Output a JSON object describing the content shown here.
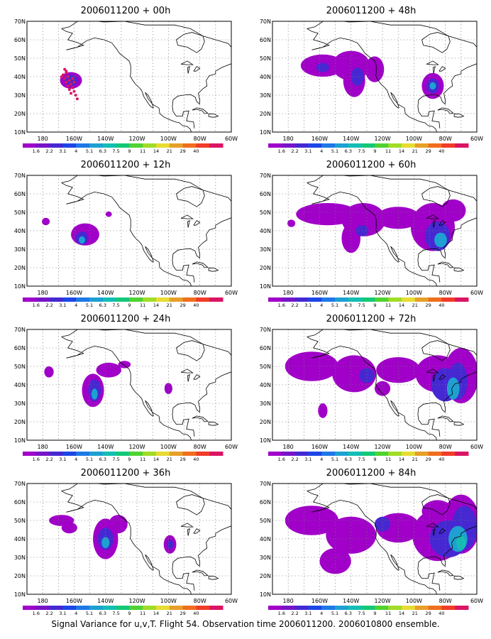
{
  "caption": "Signal Variance for u,v,T. Flight 54. Observation time 2006011200. 2006010800 ensemble.",
  "lat_labels": [
    "10N",
    "20N",
    "30N",
    "40N",
    "50N",
    "60N",
    "70N"
  ],
  "lon_labels": [
    "180",
    "160W",
    "140W",
    "120W",
    "100W",
    "80W",
    "60W"
  ],
  "colorbar": {
    "labels": [
      "1.6",
      "2.2",
      "3.1",
      "4",
      "5.1",
      "6.3",
      "7.5",
      "9",
      "11",
      "14",
      "21",
      "29",
      "40"
    ],
    "colors": [
      "#a000c8",
      "#7814c8",
      "#4628d2",
      "#1e46e6",
      "#1e78e6",
      "#1ea0d2",
      "#14beb4",
      "#14c878",
      "#50d232",
      "#a0dc28",
      "#e6dc32",
      "#e6a028",
      "#f06e1e",
      "#f03c28",
      "#dc1464"
    ]
  },
  "panels": [
    {
      "title": "2006011200 + 00h",
      "col": 0,
      "row": 0,
      "blobs": [
        {
          "lon": -162,
          "lat": 38,
          "rx": 7,
          "ry": 4.5,
          "level": 1
        },
        {
          "lon": -162,
          "lat": 38,
          "rx": 4,
          "ry": 3,
          "level": 2
        }
      ],
      "dots": [
        [
          -166,
          44
        ],
        [
          -165,
          42
        ],
        [
          -164,
          40
        ],
        [
          -163,
          38
        ],
        [
          -162,
          36
        ],
        [
          -161,
          34
        ],
        [
          -160,
          32
        ],
        [
          -159,
          30
        ],
        [
          -158,
          28
        ],
        [
          -167,
          41
        ],
        [
          -166,
          39
        ],
        [
          -165,
          37
        ],
        [
          -164,
          35
        ],
        [
          -163,
          33
        ],
        [
          -162,
          31
        ],
        [
          -168,
          40
        ],
        [
          -165,
          43
        ],
        [
          -161,
          39
        ],
        [
          -160,
          37
        ]
      ]
    },
    {
      "title": "2006011200 + 48h",
      "col": 1,
      "row": 0,
      "blobs": [
        {
          "lon": -158,
          "lat": 46,
          "rx": 14,
          "ry": 6,
          "level": 1
        },
        {
          "lon": -140,
          "lat": 46,
          "rx": 12,
          "ry": 8,
          "level": 1
        },
        {
          "lon": -138,
          "lat": 38,
          "rx": 7,
          "ry": 9,
          "level": 1
        },
        {
          "lon": -125,
          "lat": 44,
          "rx": 6,
          "ry": 7,
          "level": 1
        },
        {
          "lon": -136,
          "lat": 40,
          "rx": 4,
          "ry": 5,
          "level": 2
        },
        {
          "lon": -158,
          "lat": 45,
          "rx": 4,
          "ry": 2.5,
          "level": 2
        },
        {
          "lon": -88,
          "lat": 35,
          "rx": 7,
          "ry": 7,
          "level": 1
        },
        {
          "lon": -88,
          "lat": 35,
          "rx": 4,
          "ry": 4,
          "level": 2
        },
        {
          "lon": -88,
          "lat": 35,
          "rx": 2,
          "ry": 2,
          "level": 3
        }
      ],
      "dots": []
    },
    {
      "title": "2006011200 + 12h",
      "col": 0,
      "row": 1,
      "blobs": [
        {
          "lon": -178,
          "lat": 45,
          "rx": 2.5,
          "ry": 2,
          "level": 1
        },
        {
          "lon": -153,
          "lat": 38,
          "rx": 9,
          "ry": 6,
          "level": 1
        },
        {
          "lon": -155,
          "lat": 36,
          "rx": 4,
          "ry": 3.5,
          "level": 2
        },
        {
          "lon": -155,
          "lat": 35,
          "rx": 2,
          "ry": 2,
          "level": 3
        },
        {
          "lon": -138,
          "lat": 49,
          "rx": 2,
          "ry": 1.5,
          "level": 1
        }
      ],
      "dots": []
    },
    {
      "title": "2006011200 + 60h",
      "col": 1,
      "row": 1,
      "blobs": [
        {
          "lon": -178,
          "lat": 44,
          "rx": 2.5,
          "ry": 2,
          "level": 1
        },
        {
          "lon": -155,
          "lat": 49,
          "rx": 20,
          "ry": 6,
          "level": 1
        },
        {
          "lon": -132,
          "lat": 46,
          "rx": 14,
          "ry": 9,
          "level": 1
        },
        {
          "lon": -140,
          "lat": 36,
          "rx": 6,
          "ry": 8,
          "level": 1
        },
        {
          "lon": -110,
          "lat": 47,
          "rx": 14,
          "ry": 6,
          "level": 1
        },
        {
          "lon": -88,
          "lat": 42,
          "rx": 14,
          "ry": 13,
          "level": 1
        },
        {
          "lon": -75,
          "lat": 51,
          "rx": 8,
          "ry": 6,
          "level": 1
        },
        {
          "lon": -85,
          "lat": 37,
          "rx": 8,
          "ry": 8,
          "level": 2
        },
        {
          "lon": -83,
          "lat": 35,
          "rx": 4,
          "ry": 4,
          "level": 3
        },
        {
          "lon": -133,
          "lat": 40,
          "rx": 4,
          "ry": 3,
          "level": 2
        }
      ],
      "dots": []
    },
    {
      "title": "2006011200 + 24h",
      "col": 0,
      "row": 2,
      "blobs": [
        {
          "lon": -176,
          "lat": 47,
          "rx": 3,
          "ry": 3,
          "level": 1
        },
        {
          "lon": -148,
          "lat": 37,
          "rx": 7,
          "ry": 9,
          "level": 1
        },
        {
          "lon": -138,
          "lat": 48,
          "rx": 8,
          "ry": 4,
          "level": 1
        },
        {
          "lon": -128,
          "lat": 51,
          "rx": 4,
          "ry": 2,
          "level": 1
        },
        {
          "lon": -147,
          "lat": 37,
          "rx": 4,
          "ry": 6,
          "level": 2
        },
        {
          "lon": -147,
          "lat": 35,
          "rx": 2,
          "ry": 3,
          "level": 3
        },
        {
          "lon": -100,
          "lat": 38,
          "rx": 2.5,
          "ry": 3,
          "level": 1
        }
      ],
      "dots": []
    },
    {
      "title": "2006011200 + 72h",
      "col": 1,
      "row": 2,
      "blobs": [
        {
          "lon": -165,
          "lat": 50,
          "rx": 17,
          "ry": 8,
          "level": 1
        },
        {
          "lon": -138,
          "lat": 46,
          "rx": 14,
          "ry": 10,
          "level": 1
        },
        {
          "lon": -110,
          "lat": 48,
          "rx": 14,
          "ry": 7,
          "level": 1
        },
        {
          "lon": -85,
          "lat": 46,
          "rx": 14,
          "ry": 10,
          "level": 1
        },
        {
          "lon": -70,
          "lat": 45,
          "rx": 11,
          "ry": 15,
          "level": 1
        },
        {
          "lon": -158,
          "lat": 26,
          "rx": 3,
          "ry": 4,
          "level": 1
        },
        {
          "lon": -120,
          "lat": 38,
          "rx": 5,
          "ry": 4,
          "level": 1
        },
        {
          "lon": -80,
          "lat": 40,
          "rx": 9,
          "ry": 9,
          "level": 2
        },
        {
          "lon": -72,
          "lat": 42,
          "rx": 6,
          "ry": 10,
          "level": 2
        },
        {
          "lon": -75,
          "lat": 38,
          "rx": 4,
          "ry": 6,
          "level": 3
        },
        {
          "lon": -130,
          "lat": 45,
          "rx": 5,
          "ry": 4,
          "level": 2
        }
      ],
      "dots": []
    },
    {
      "title": "2006011200 + 36h",
      "col": 0,
      "row": 3,
      "blobs": [
        {
          "lon": -168,
          "lat": 50,
          "rx": 8,
          "ry": 3,
          "level": 1
        },
        {
          "lon": -163,
          "lat": 46,
          "rx": 5,
          "ry": 3,
          "level": 1
        },
        {
          "lon": -140,
          "lat": 40,
          "rx": 8,
          "ry": 11,
          "level": 1
        },
        {
          "lon": -132,
          "lat": 48,
          "rx": 6,
          "ry": 5,
          "level": 1
        },
        {
          "lon": -140,
          "lat": 40,
          "rx": 5,
          "ry": 6,
          "level": 2
        },
        {
          "lon": -140,
          "lat": 38,
          "rx": 2.5,
          "ry": 3,
          "level": 3
        },
        {
          "lon": -99,
          "lat": 37,
          "rx": 4,
          "ry": 5,
          "level": 1
        },
        {
          "lon": -99,
          "lat": 37,
          "rx": 2,
          "ry": 2.5,
          "level": 2
        }
      ],
      "dots": []
    },
    {
      "title": "2006011200 + 84h",
      "col": 1,
      "row": 3,
      "blobs": [
        {
          "lon": -165,
          "lat": 50,
          "rx": 17,
          "ry": 8,
          "level": 1
        },
        {
          "lon": -140,
          "lat": 42,
          "rx": 16,
          "ry": 10,
          "level": 1
        },
        {
          "lon": -150,
          "lat": 28,
          "rx": 10,
          "ry": 7,
          "level": 1
        },
        {
          "lon": -110,
          "lat": 46,
          "rx": 14,
          "ry": 8,
          "level": 1
        },
        {
          "lon": -85,
          "lat": 42,
          "rx": 16,
          "ry": 14,
          "level": 1
        },
        {
          "lon": -70,
          "lat": 48,
          "rx": 12,
          "ry": 16,
          "level": 1
        },
        {
          "lon": -85,
          "lat": 55,
          "rx": 10,
          "ry": 6,
          "level": 1
        },
        {
          "lon": -78,
          "lat": 40,
          "rx": 12,
          "ry": 10,
          "level": 2
        },
        {
          "lon": -68,
          "lat": 46,
          "rx": 8,
          "ry": 12,
          "level": 2
        },
        {
          "lon": -72,
          "lat": 40,
          "rx": 6,
          "ry": 7,
          "level": 3
        },
        {
          "lon": -70,
          "lat": 38,
          "rx": 3,
          "ry": 4,
          "level": 4
        },
        {
          "lon": -120,
          "lat": 48,
          "rx": 5,
          "ry": 4,
          "level": 2
        }
      ],
      "dots": []
    }
  ]
}
